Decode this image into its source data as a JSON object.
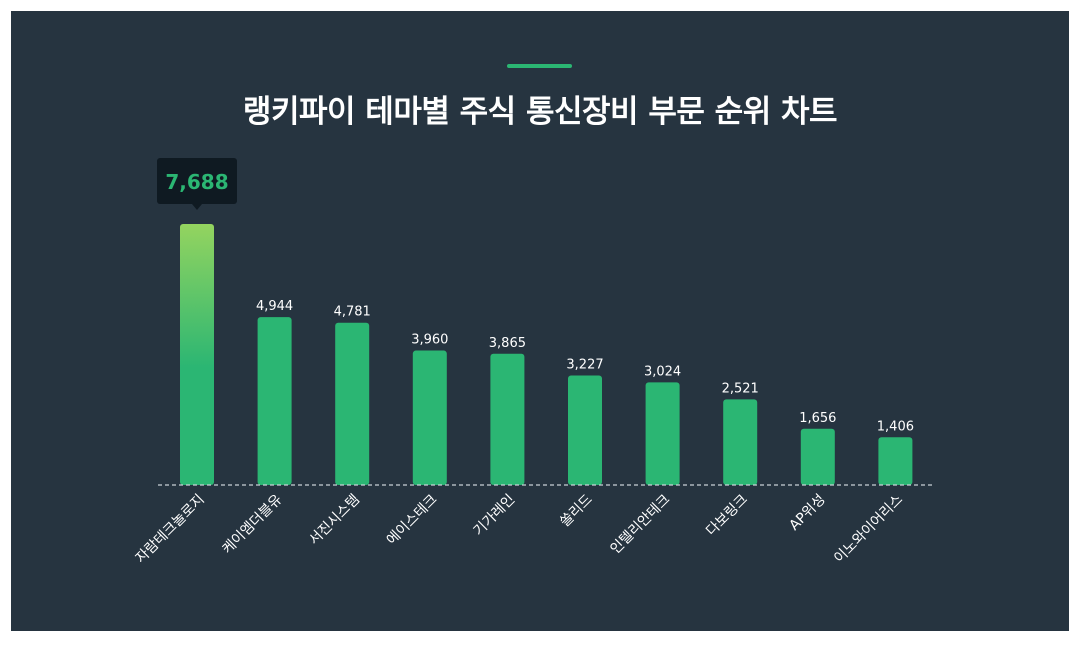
{
  "title": "랭키파이 테마별 주식 통신장비 부문 순위 차트",
  "colors": {
    "background": "#263440",
    "bar": "#2bb673",
    "highlight_top": "#94d45f",
    "tooltip_bg": "#0f1a22",
    "tooltip_text": "#2bb673",
    "text": "#ffffff"
  },
  "chart_data": {
    "type": "bar",
    "title": "랭키파이 테마별 주식 통신장비 부문 순위 차트",
    "categories": [
      "자람테크놀로지",
      "케이엠더블유",
      "서진시스템",
      "에이스테크",
      "기가레인",
      "쏠리드",
      "인텔리안테크",
      "다보링크",
      "AP위성",
      "이노와이어리스"
    ],
    "values": [
      7688,
      4944,
      4781,
      3960,
      3865,
      3227,
      3024,
      2521,
      1656,
      1406
    ],
    "value_labels": [
      "7,688",
      "4,944",
      "4,781",
      "3,960",
      "3,865",
      "3,227",
      "3,024",
      "2,521",
      "1,656",
      "1,406"
    ],
    "highlight_index": 0,
    "ylim": [
      0,
      7688
    ],
    "grid": false,
    "legend": "none"
  }
}
